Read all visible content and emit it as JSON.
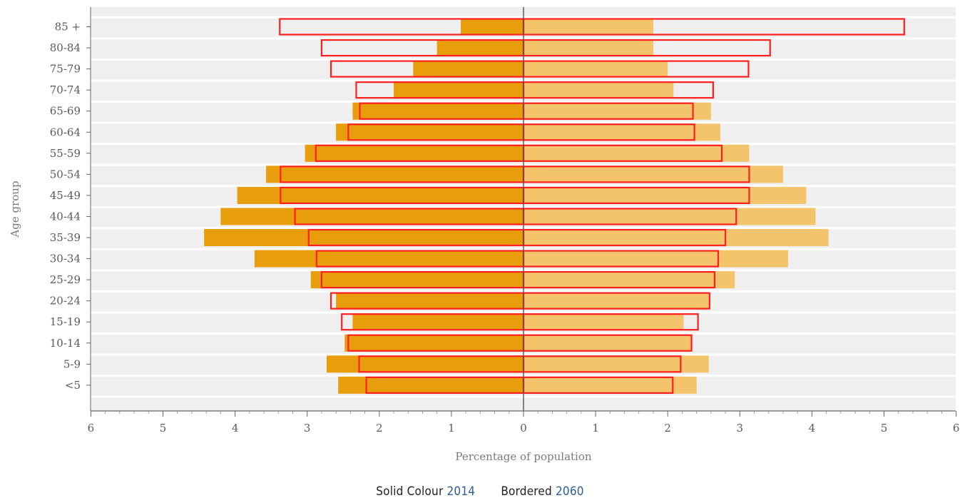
{
  "chart_data": {
    "type": "bar",
    "orientation": "horizontal",
    "categories": [
      "85 +",
      "80-84",
      "75-79",
      "70-74",
      "65-69",
      "60-64",
      "55-59",
      "50-54",
      "45-49",
      "40-44",
      "35-39",
      "30-34",
      "25-29",
      "20-24",
      "15-19",
      "10-14",
      "5-9",
      "<5"
    ],
    "series": [
      {
        "name": "2014",
        "style": "solid",
        "side": "left",
        "values": [
          0.87,
          1.2,
          1.53,
          1.8,
          2.37,
          2.6,
          3.03,
          3.57,
          3.97,
          4.2,
          4.43,
          3.73,
          2.95,
          2.6,
          2.37,
          2.48,
          2.73,
          2.57
        ]
      },
      {
        "name": "2014",
        "style": "solid",
        "side": "right",
        "values": [
          1.8,
          1.8,
          2.0,
          2.08,
          2.6,
          2.73,
          3.13,
          3.6,
          3.92,
          4.05,
          4.23,
          3.67,
          2.93,
          2.57,
          2.22,
          2.33,
          2.57,
          2.4
        ]
      },
      {
        "name": "2060",
        "style": "bordered",
        "side": "left",
        "values": [
          3.38,
          2.8,
          2.67,
          2.32,
          2.27,
          2.43,
          2.88,
          3.37,
          3.37,
          3.17,
          2.98,
          2.87,
          2.8,
          2.67,
          2.52,
          2.43,
          2.28,
          2.18
        ]
      },
      {
        "name": "2060",
        "style": "bordered",
        "side": "right",
        "values": [
          5.28,
          3.42,
          3.12,
          2.63,
          2.35,
          2.37,
          2.75,
          3.13,
          3.13,
          2.95,
          2.8,
          2.7,
          2.65,
          2.58,
          2.42,
          2.33,
          2.18,
          2.07
        ]
      }
    ],
    "xlabel": "Percentage of population",
    "ylabel": "Age group",
    "x_ticks": [
      "6",
      "5",
      "4",
      "3",
      "2",
      "1",
      "0",
      "1",
      "2",
      "3",
      "4",
      "5",
      "6"
    ],
    "xlim": [
      -6,
      6
    ],
    "colors": {
      "solid_left": "#e89e0c",
      "solid_right": "#f4c46c",
      "bordered": "#ff1f1f",
      "plot_background": "#efefef",
      "row_separator": "#ffffff",
      "center_line": "#555555"
    },
    "grid": false,
    "legend": {
      "position": "bottom-center",
      "solid_label": "Solid Colour",
      "solid_year": "2014",
      "bordered_label": "Bordered",
      "bordered_year": "2060"
    }
  }
}
